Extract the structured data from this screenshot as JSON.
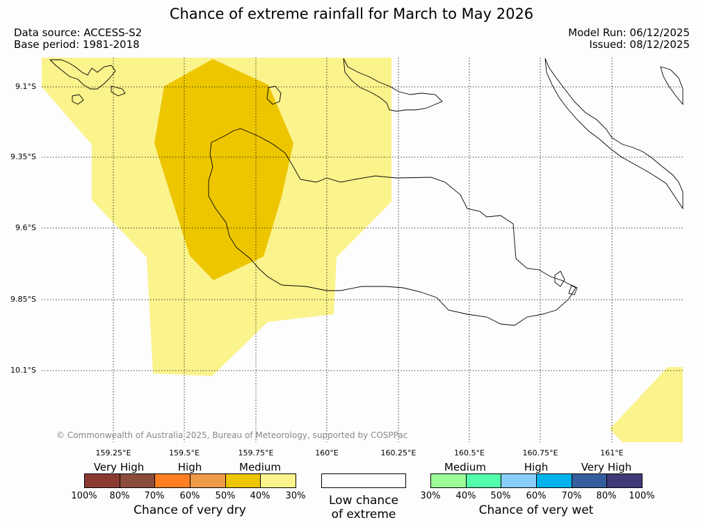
{
  "title": "Chance of extreme rainfall for March to May 2026",
  "data_source": "Data source: ACCESS-S2",
  "base_period": "Base period: 1981-2018",
  "model_run": "Model Run: 06/12/2025",
  "issued": "Issued: 08/12/2025",
  "copyright": "© Commonwealth of Australia 2025, Bureau of Meteorology, supported by COSPPac",
  "lat_labels": [
    "9.1°S",
    "9.35°S",
    "9.6°S",
    "9.85°S",
    "10.1°S"
  ],
  "lon_labels": [
    "159.25°E",
    "159.5°E",
    "159.75°E",
    "160°E",
    "160.25°E",
    "160.5°E",
    "160.75°E",
    "161°E"
  ],
  "colors": {
    "medium_dry": "#fbf38c",
    "high_dry": "#edc600",
    "grid": "#000000",
    "coast": "#000000"
  },
  "legend": {
    "dry": {
      "categories": [
        "Very High",
        "High",
        "Medium"
      ],
      "colors": [
        "#8b3a32",
        "#8c4c3b",
        "#fd7f22",
        "#ee9b47",
        "#edc600",
        "#fbf38c"
      ],
      "ticks": [
        "100%",
        "80%",
        "70%",
        "60%",
        "50%",
        "40%",
        "30%"
      ],
      "title": "Chance of very dry"
    },
    "low": {
      "line1": "Low chance",
      "line2": "of extreme"
    },
    "wet": {
      "categories": [
        "Medium",
        "High",
        "Very High"
      ],
      "colors": [
        "#9cfd98",
        "#54fdab",
        "#89cdfb",
        "#00b2eb",
        "#355e9e",
        "#3e3b78"
      ],
      "ticks": [
        "30%",
        "40%",
        "50%",
        "60%",
        "70%",
        "80%",
        "100%"
      ],
      "title": "Chance of very wet"
    }
  }
}
